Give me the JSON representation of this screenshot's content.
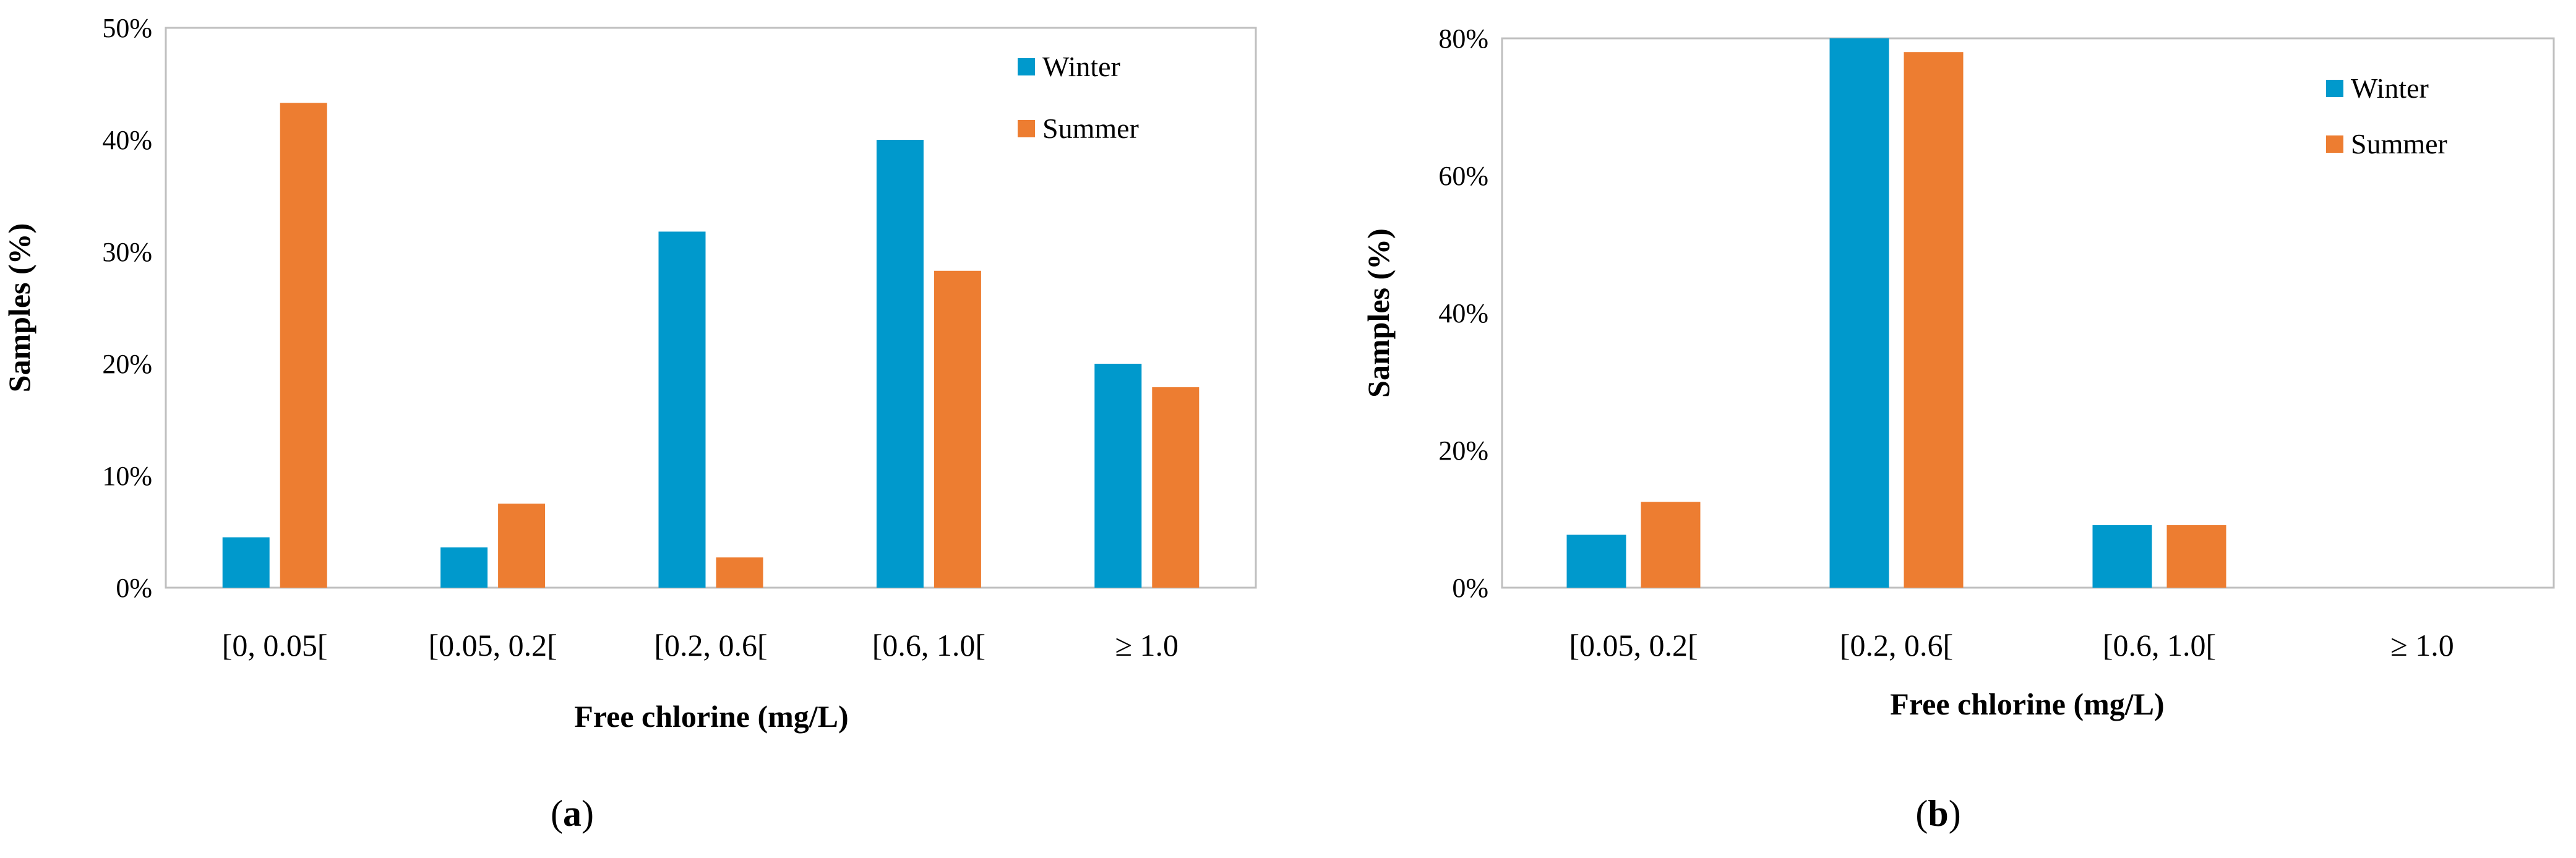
{
  "chart_data": [
    {
      "type": "bar",
      "panel": "a",
      "title": "",
      "xlabel": "Free chlorine (mg/L)",
      "ylabel": "Samples (%)",
      "ylim": [
        0,
        50
      ],
      "yticks": [
        0,
        10,
        20,
        30,
        40,
        50
      ],
      "ytick_labels": [
        "0%",
        "10%",
        "20%",
        "30%",
        "40%",
        "50%"
      ],
      "categories": [
        "[0, 0.05[",
        "[0.05, 0.2[",
        "[0.2, 0.6[",
        "[0.6, 1.0[",
        "≥ 1.0"
      ],
      "series": [
        {
          "name": "Winter",
          "color": "#0099CC",
          "values": [
            4.5,
            3.6,
            31.8,
            40.0,
            20.0
          ]
        },
        {
          "name": "Summer",
          "color": "#ED7D31",
          "values": [
            43.3,
            7.5,
            2.7,
            28.3,
            17.9
          ]
        }
      ],
      "legend": "top-right",
      "grid": false
    },
    {
      "type": "bar",
      "panel": "b",
      "title": "",
      "xlabel": "Free chlorine (mg/L)",
      "ylabel": "Samples (%)",
      "ylim": [
        0,
        80
      ],
      "yticks": [
        0,
        20,
        40,
        60,
        80
      ],
      "ytick_labels": [
        "0%",
        "20%",
        "40%",
        "60%",
        "80%"
      ],
      "categories": [
        "[0.05, 0.2[",
        "[0.2, 0.6[",
        "[0.6, 1.0[",
        "≥ 1.0"
      ],
      "series": [
        {
          "name": "Winter",
          "color": "#0099CC",
          "values": [
            7.7,
            80.0,
            9.1,
            0
          ]
        },
        {
          "name": "Summer",
          "color": "#ED7D31",
          "values": [
            12.5,
            78.0,
            9.1,
            0
          ]
        }
      ],
      "legend": "top-right",
      "grid": false
    }
  ],
  "panel_labels": [
    {
      "open": "(",
      "letter": "a",
      "close": ")"
    },
    {
      "open": "(",
      "letter": "b",
      "close": ")"
    }
  ]
}
